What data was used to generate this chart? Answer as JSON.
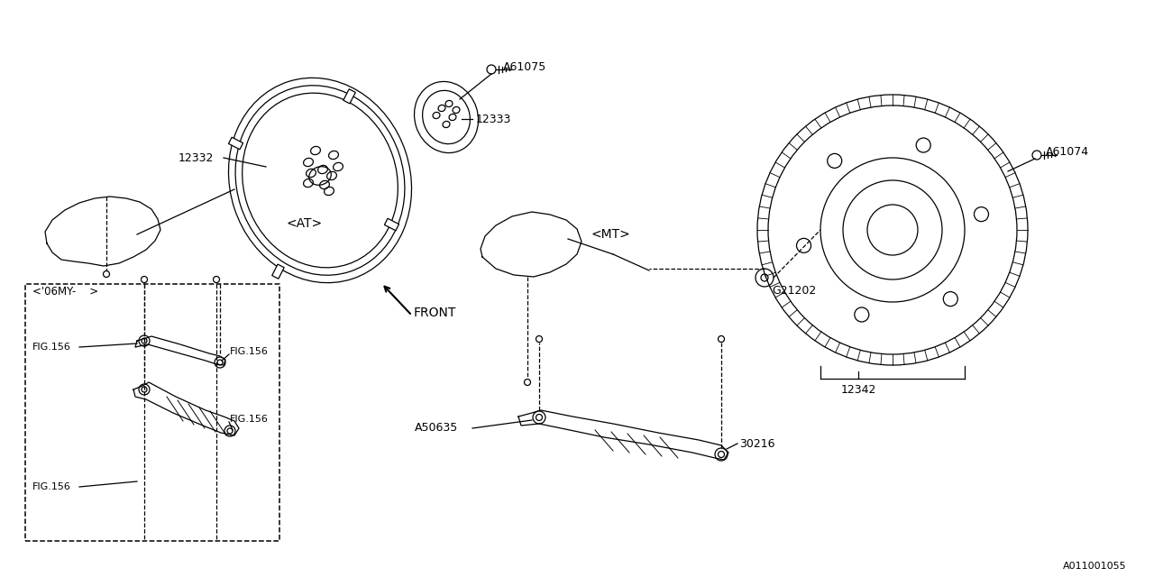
{
  "bg_color": "#ffffff",
  "line_color": "#000000",
  "footer_ref": "A011001055",
  "parts": {
    "AT_flywheel_label": "12332",
    "AT_plate_label": "12333",
    "AT_bolt_label": "A61075",
    "AT_label": "<AT>",
    "MT_flywheel_label": "12342",
    "MT_bolt_label": "A61074",
    "MT_washer_label": "G21202",
    "MT_label": "<MT>",
    "front_label": "FRONT",
    "cover_plate_label": "30216",
    "cover_bolt_label": "A50635",
    "dashed_box_label": "<'06MY-    >"
  }
}
